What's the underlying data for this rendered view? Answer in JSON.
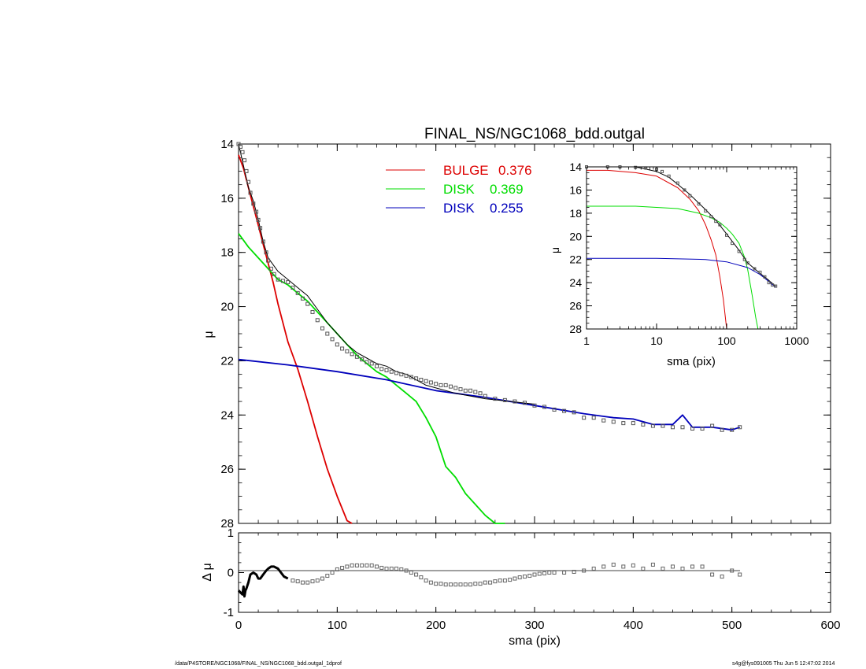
{
  "figure": {
    "title": "FINAL_NS/NGC1068_bdd.outgal",
    "footer_left": "/data/P4STORE/NGC1068/FINAL_NS/NGC1068_bdd.outgal_1dprof",
    "footer_right": "s4g@fys091005  Thu Jun  5 12:47:02 2014"
  },
  "chart_data": [
    {
      "id": "main",
      "type": "line",
      "xlabel": "sma (pix)",
      "ylabel": "μ",
      "xlim": [
        0,
        600
      ],
      "ylim": [
        28,
        14
      ],
      "x_ticks": [
        0,
        100,
        200,
        300,
        400,
        500,
        600
      ],
      "y_ticks": [
        14,
        16,
        18,
        20,
        22,
        24,
        26,
        28
      ],
      "legend_placement": "top-center",
      "legend": [
        {
          "label": "BULGE",
          "value": "0.376",
          "color": "#dd0000"
        },
        {
          "label": "DISK",
          "value": "0.369",
          "color": "#00dd00"
        },
        {
          "label": "DISK",
          "value": "0.255",
          "color": "#0000bb"
        }
      ],
      "series": [
        {
          "name": "BULGE",
          "color": "#dd0000",
          "x": [
            0,
            5,
            10,
            15,
            20,
            25,
            30,
            35,
            40,
            45,
            50,
            55,
            60,
            70,
            80,
            90,
            100,
            110,
            115
          ],
          "y": [
            14.4,
            14.9,
            15.6,
            16.3,
            17.0,
            17.7,
            18.4,
            19.1,
            19.9,
            20.6,
            21.3,
            21.8,
            22.3,
            23.5,
            24.8,
            26.0,
            27.0,
            27.9,
            28.3
          ]
        },
        {
          "name": "DISK",
          "color": "#00dd00",
          "x": [
            0,
            10,
            20,
            30,
            40,
            50,
            60,
            70,
            80,
            90,
            100,
            110,
            120,
            130,
            140,
            150,
            160,
            170,
            180,
            190,
            200,
            210,
            220,
            230,
            240,
            250,
            260,
            270
          ],
          "y": [
            17.3,
            17.8,
            18.2,
            18.6,
            19.0,
            19.2,
            19.5,
            19.8,
            20.2,
            20.6,
            21.0,
            21.4,
            21.8,
            22.1,
            22.4,
            22.6,
            22.9,
            23.2,
            23.5,
            24.1,
            24.8,
            25.9,
            26.3,
            26.9,
            27.3,
            27.7,
            28.0,
            28.2
          ]
        },
        {
          "name": "DISK",
          "color": "#0000bb",
          "x": [
            0,
            50,
            100,
            150,
            200,
            250,
            300,
            350,
            380,
            400,
            420,
            440,
            450,
            460,
            480,
            500,
            508
          ],
          "y": [
            21.95,
            22.15,
            22.4,
            22.7,
            23.1,
            23.35,
            23.65,
            23.95,
            24.1,
            24.15,
            24.35,
            24.35,
            24.0,
            24.45,
            24.45,
            24.55,
            24.45
          ]
        },
        {
          "name": "model",
          "color": "#000000",
          "x": [
            0,
            5,
            10,
            15,
            20,
            25,
            30,
            40,
            50,
            60,
            70,
            80,
            90,
            100,
            110,
            120,
            130,
            140,
            150,
            160,
            170,
            180,
            190,
            200,
            220,
            250,
            300
          ],
          "y": [
            14.0,
            14.8,
            15.6,
            16.1,
            16.8,
            17.6,
            18.2,
            18.7,
            19.0,
            19.3,
            19.6,
            20.1,
            20.6,
            21.0,
            21.4,
            21.7,
            21.9,
            22.1,
            22.2,
            22.4,
            22.5,
            22.7,
            22.9,
            23.0,
            23.2,
            23.4,
            23.6
          ]
        },
        {
          "name": "data",
          "color": "#555555",
          "x": [
            0,
            2,
            4,
            6,
            8,
            10,
            12,
            15,
            18,
            20,
            22,
            25,
            28,
            30,
            33,
            36,
            40,
            45,
            50,
            55,
            60,
            65,
            70,
            75,
            80,
            85,
            90,
            95,
            100,
            105,
            110,
            115,
            120,
            125,
            130,
            135,
            140,
            145,
            150,
            155,
            160,
            165,
            170,
            175,
            180,
            185,
            190,
            195,
            200,
            205,
            210,
            215,
            220,
            225,
            230,
            235,
            240,
            245,
            250,
            260,
            270,
            280,
            290,
            300,
            310,
            320,
            330,
            340,
            350,
            360,
            370,
            380,
            390,
            400,
            410,
            420,
            430,
            440,
            450,
            460,
            470,
            480,
            490,
            500,
            508
          ],
          "y": [
            14.0,
            14.1,
            14.3,
            14.6,
            15.0,
            15.4,
            15.8,
            16.2,
            16.5,
            16.8,
            17.1,
            17.6,
            18.0,
            18.3,
            18.6,
            18.8,
            19.0,
            19.05,
            19.1,
            19.3,
            19.5,
            19.7,
            19.9,
            20.2,
            20.5,
            20.8,
            21.0,
            21.2,
            21.4,
            21.55,
            21.65,
            21.75,
            21.85,
            21.95,
            22.05,
            22.1,
            22.2,
            22.3,
            22.35,
            22.4,
            22.45,
            22.5,
            22.55,
            22.6,
            22.65,
            22.7,
            22.75,
            22.8,
            22.85,
            22.9,
            22.9,
            22.95,
            23.0,
            23.05,
            23.1,
            23.1,
            23.15,
            23.2,
            23.3,
            23.4,
            23.45,
            23.5,
            23.55,
            23.65,
            23.7,
            23.8,
            23.85,
            23.9,
            24.1,
            24.1,
            24.2,
            24.25,
            24.3,
            24.3,
            24.35,
            24.4,
            24.4,
            24.45,
            24.45,
            24.5,
            24.5,
            24.4,
            24.55,
            24.55,
            24.45
          ]
        }
      ]
    },
    {
      "id": "residual",
      "type": "scatter",
      "xlabel": "sma (pix)",
      "ylabel": "Δ μ",
      "xlim": [
        0,
        600
      ],
      "ylim": [
        -1,
        1
      ],
      "x_ticks": [
        0,
        100,
        200,
        300,
        400,
        500,
        600
      ],
      "y_ticks": [
        -1,
        0,
        1
      ],
      "series": [
        {
          "name": "residual_line",
          "color": "#000000",
          "x": [
            0,
            2,
            4,
            5,
            6,
            7,
            8,
            10,
            12,
            15,
            18,
            20,
            22,
            25,
            28,
            30,
            33,
            36,
            40,
            43,
            46,
            50
          ],
          "y": [
            -0.45,
            -0.5,
            -0.55,
            -0.35,
            -0.6,
            -0.45,
            -0.4,
            -0.25,
            -0.05,
            0.0,
            -0.05,
            -0.15,
            -0.15,
            -0.05,
            0.05,
            0.1,
            0.15,
            0.15,
            0.1,
            0.0,
            -0.1,
            -0.15
          ]
        },
        {
          "name": "residual_points",
          "color": "#666666",
          "x": [
            55,
            60,
            65,
            70,
            75,
            80,
            85,
            90,
            95,
            100,
            105,
            110,
            115,
            120,
            125,
            130,
            135,
            140,
            145,
            150,
            155,
            160,
            165,
            170,
            175,
            180,
            185,
            190,
            195,
            200,
            205,
            210,
            215,
            220,
            225,
            230,
            235,
            240,
            245,
            250,
            255,
            260,
            265,
            270,
            275,
            280,
            285,
            290,
            295,
            300,
            305,
            310,
            315,
            320,
            330,
            340,
            350,
            360,
            370,
            380,
            390,
            400,
            410,
            420,
            430,
            440,
            450,
            460,
            470,
            480,
            490,
            500,
            508
          ],
          "y": [
            -0.2,
            -0.22,
            -0.25,
            -0.25,
            -0.22,
            -0.2,
            -0.15,
            -0.08,
            0.0,
            0.08,
            0.12,
            0.15,
            0.18,
            0.18,
            0.18,
            0.18,
            0.18,
            0.15,
            0.12,
            0.1,
            0.1,
            0.1,
            0.08,
            0.05,
            0.0,
            -0.05,
            -0.12,
            -0.2,
            -0.25,
            -0.28,
            -0.28,
            -0.3,
            -0.3,
            -0.3,
            -0.3,
            -0.3,
            -0.3,
            -0.28,
            -0.28,
            -0.25,
            -0.25,
            -0.22,
            -0.2,
            -0.2,
            -0.18,
            -0.15,
            -0.12,
            -0.1,
            -0.08,
            -0.05,
            -0.03,
            -0.02,
            0.0,
            0.0,
            0.0,
            0.02,
            0.05,
            0.1,
            0.15,
            0.2,
            0.15,
            0.18,
            0.1,
            0.2,
            0.1,
            0.15,
            0.1,
            0.15,
            0.15,
            -0.05,
            -0.1,
            0.05,
            -0.05
          ]
        }
      ]
    },
    {
      "id": "inset",
      "type": "line",
      "xlabel": "sma (pix)",
      "ylabel": "μ",
      "xscale": "log",
      "xlim": [
        1,
        1000
      ],
      "ylim": [
        28,
        14
      ],
      "x_ticks": [
        1,
        10,
        100,
        1000
      ],
      "y_ticks": [
        14,
        16,
        18,
        20,
        22,
        24,
        26,
        28
      ],
      "series": [
        {
          "name": "BULGE",
          "color": "#dd0000",
          "x": [
            1,
            2,
            5,
            10,
            20,
            30,
            40,
            50,
            60,
            70,
            80,
            90,
            100
          ],
          "y": [
            14.3,
            14.3,
            14.5,
            14.8,
            15.8,
            16.8,
            17.8,
            19.0,
            20.3,
            21.6,
            23.5,
            25.5,
            28.0
          ]
        },
        {
          "name": "DISK",
          "color": "#00dd00",
          "x": [
            1,
            5,
            10,
            20,
            40,
            60,
            80,
            100,
            120,
            150,
            180,
            200,
            230,
            260,
            280
          ],
          "y": [
            17.4,
            17.4,
            17.5,
            17.6,
            18.0,
            18.4,
            18.8,
            19.3,
            19.8,
            20.6,
            21.8,
            22.9,
            25.0,
            27.0,
            28.0
          ]
        },
        {
          "name": "DISK",
          "color": "#0000bb",
          "x": [
            1,
            10,
            50,
            100,
            200,
            300,
            400,
            500
          ],
          "y": [
            21.9,
            21.9,
            22.0,
            22.2,
            22.7,
            23.3,
            23.9,
            24.4
          ]
        },
        {
          "name": "model",
          "color": "#000000",
          "x": [
            1,
            5,
            10,
            15,
            20,
            30,
            50,
            70,
            100,
            150,
            200,
            300,
            400,
            500
          ],
          "y": [
            14.0,
            14.0,
            14.4,
            14.9,
            15.5,
            16.4,
            17.7,
            18.6,
            19.8,
            21.2,
            22.3,
            23.2,
            23.8,
            24.3
          ]
        },
        {
          "name": "data",
          "color": "#555555",
          "x": [
            1,
            2,
            3,
            5,
            7,
            10,
            12,
            15,
            20,
            25,
            30,
            40,
            50,
            60,
            70,
            80,
            100,
            120,
            150,
            180,
            200,
            250,
            300,
            350,
            400,
            450,
            500
          ],
          "y": [
            14.0,
            14.0,
            14.0,
            14.05,
            14.1,
            14.2,
            14.4,
            14.8,
            15.4,
            16.0,
            16.5,
            17.2,
            17.8,
            18.3,
            18.7,
            19.0,
            19.9,
            20.6,
            21.3,
            22.0,
            22.3,
            22.8,
            23.1,
            23.5,
            24.0,
            24.2,
            24.3
          ]
        }
      ]
    }
  ]
}
